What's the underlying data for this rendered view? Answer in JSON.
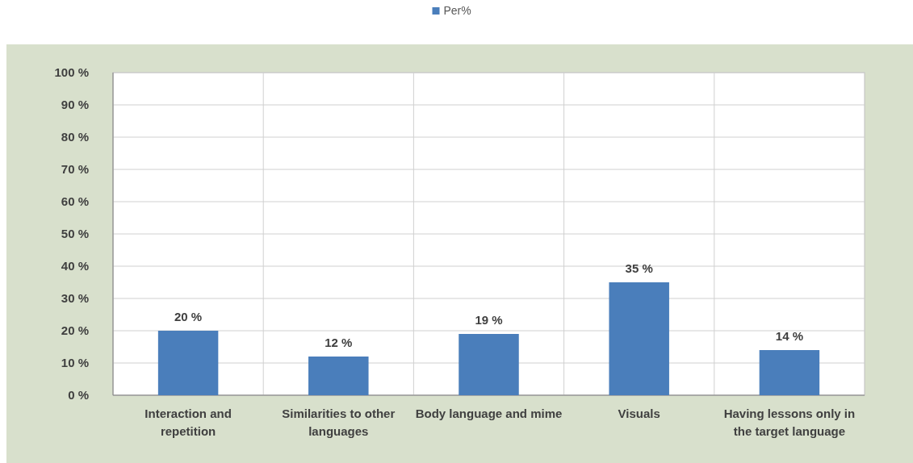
{
  "chart_data": {
    "type": "bar",
    "categories": [
      "Interaction and repetition",
      "Similarities to other languages",
      "Body language and mime",
      "Visuals",
      "Having lessons only in the target language"
    ],
    "series": [
      {
        "name": "Per%",
        "color": "#4a7ebb",
        "values": [
          20,
          12,
          19,
          35,
          14
        ],
        "value_labels": [
          "20 %",
          "12 %",
          "19 %",
          "35 %",
          "14 %"
        ]
      }
    ],
    "ylim": [
      0,
      100
    ],
    "yticks": [
      {
        "value": 0,
        "label": "0 %"
      },
      {
        "value": 10,
        "label": "10 %"
      },
      {
        "value": 20,
        "label": "20 %"
      },
      {
        "value": 30,
        "label": "30 %"
      },
      {
        "value": 40,
        "label": "40 %"
      },
      {
        "value": 50,
        "label": "50 %"
      },
      {
        "value": 60,
        "label": "60 %"
      },
      {
        "value": 70,
        "label": "70 %"
      },
      {
        "value": 80,
        "label": "80 %"
      },
      {
        "value": 90,
        "label": "90 %"
      },
      {
        "value": 100,
        "label": "100 %"
      }
    ],
    "grid": true,
    "legend": "top"
  }
}
